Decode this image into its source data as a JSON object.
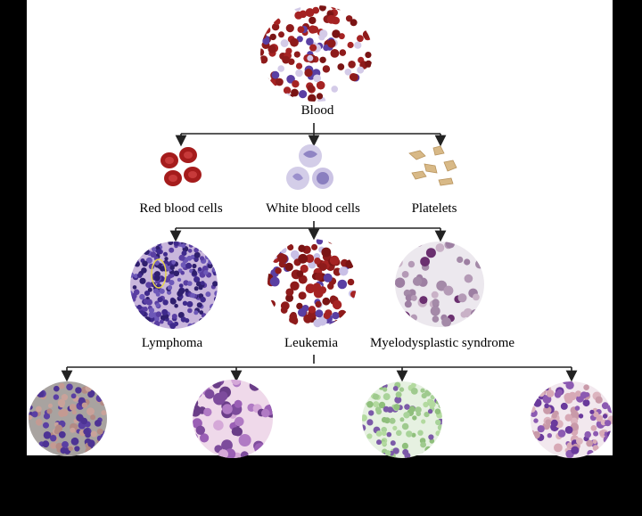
{
  "diagram": {
    "root": {
      "label": "Blood"
    },
    "components": [
      {
        "label": "Red blood cells"
      },
      {
        "label": "White blood cells"
      },
      {
        "label": "Platelets"
      }
    ],
    "disorders": [
      {
        "label": "Lymphoma"
      },
      {
        "label": "Leukemia"
      },
      {
        "label": "Myelodysplastic syndrome"
      }
    ],
    "leukemia_types": [
      {
        "label": ""
      },
      {
        "label": ""
      },
      {
        "label": ""
      },
      {
        "label": ""
      }
    ]
  },
  "colors": {
    "rbc": "#9b1c1c",
    "wbc": "#5a3fa3",
    "platelet": "#d9b98a",
    "line": "#222222"
  }
}
